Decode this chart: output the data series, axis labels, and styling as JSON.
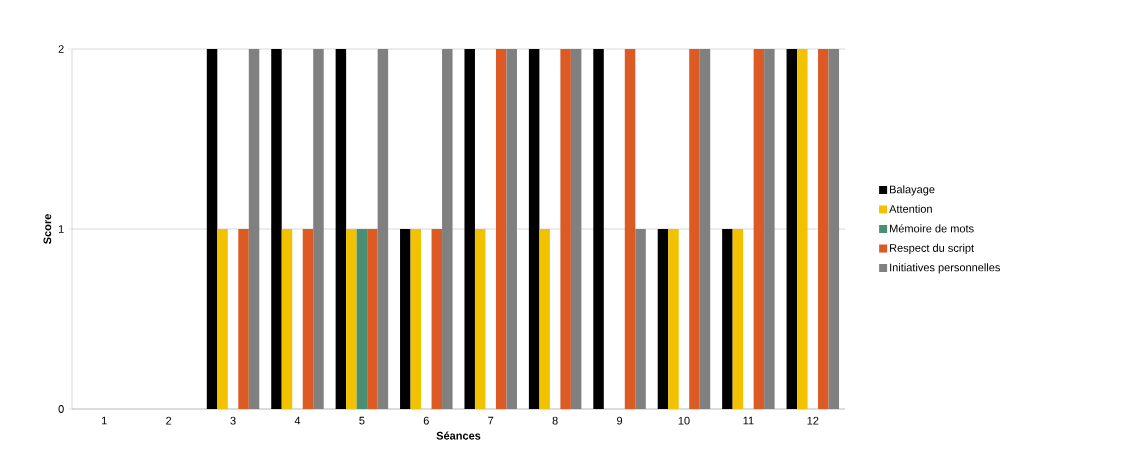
{
  "chart_data": {
    "type": "bar",
    "xlabel": "Séances",
    "ylabel": "Score",
    "categories": [
      "1",
      "2",
      "3",
      "4",
      "5",
      "6",
      "7",
      "8",
      "9",
      "10",
      "11",
      "12"
    ],
    "series": [
      {
        "name": "Balayage",
        "color": "#000000",
        "values": [
          0,
          0,
          2,
          2,
          2,
          1,
          2,
          2,
          2,
          1,
          1,
          2
        ]
      },
      {
        "name": "Attention",
        "color": "#f2c200",
        "values": [
          0,
          0,
          1,
          1,
          1,
          1,
          1,
          1,
          0,
          1,
          1,
          2
        ]
      },
      {
        "name": "Mémoire de mots",
        "color": "#4b8f73",
        "values": [
          0,
          0,
          0,
          0,
          1,
          0,
          0,
          0,
          0,
          0,
          0,
          0
        ]
      },
      {
        "name": "Respect du script",
        "color": "#dc5a24",
        "values": [
          0,
          0,
          1,
          1,
          1,
          1,
          2,
          2,
          2,
          2,
          2,
          2
        ]
      },
      {
        "name": "Initiatives personnelles",
        "color": "#808080",
        "values": [
          0,
          0,
          2,
          2,
          2,
          2,
          2,
          2,
          1,
          2,
          2,
          2
        ]
      }
    ],
    "ylim": [
      0,
      2
    ],
    "yticks": [
      0,
      1,
      2
    ],
    "grid": "y",
    "legend": "right"
  }
}
